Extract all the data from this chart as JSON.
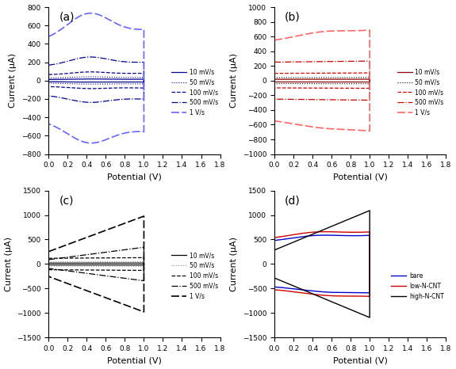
{
  "xlim": [
    0.0,
    1.8
  ],
  "xticks": [
    0.0,
    0.2,
    0.4,
    0.6,
    0.8,
    1.0,
    1.2,
    1.4,
    1.6,
    1.8
  ],
  "xlabel": "Potential (V)",
  "ylabel": "Current (μA)",
  "ylim_a": [
    -800,
    800
  ],
  "yticks_a": [
    -800,
    -600,
    -400,
    -200,
    0,
    200,
    400,
    600,
    800
  ],
  "ylim_b": [
    -1000,
    1000
  ],
  "yticks_b": [
    -1000,
    -800,
    -600,
    -400,
    -200,
    0,
    200,
    400,
    600,
    800,
    1000
  ],
  "ylim_cd": [
    -1500,
    1500
  ],
  "yticks_cd": [
    -1500,
    -1000,
    -500,
    0,
    500,
    1000,
    1500
  ],
  "legend_rates": [
    "10 mV/s",
    "50 mV/s",
    "100 mV/s",
    "500 mV/s",
    "1 V/s"
  ],
  "legend_d": [
    "bare",
    "low-N-CNT",
    "high-N-CNT"
  ],
  "color_a": "#00008B",
  "color_a_light": "#6666FF",
  "color_b_dark": "#8B0000",
  "color_b": "#CC0000",
  "color_b_light": "#FF6666",
  "color_c": "#000000",
  "color_d_bare": "#0000CC",
  "color_d_low": "#CC0000",
  "color_d_high": "#000000"
}
